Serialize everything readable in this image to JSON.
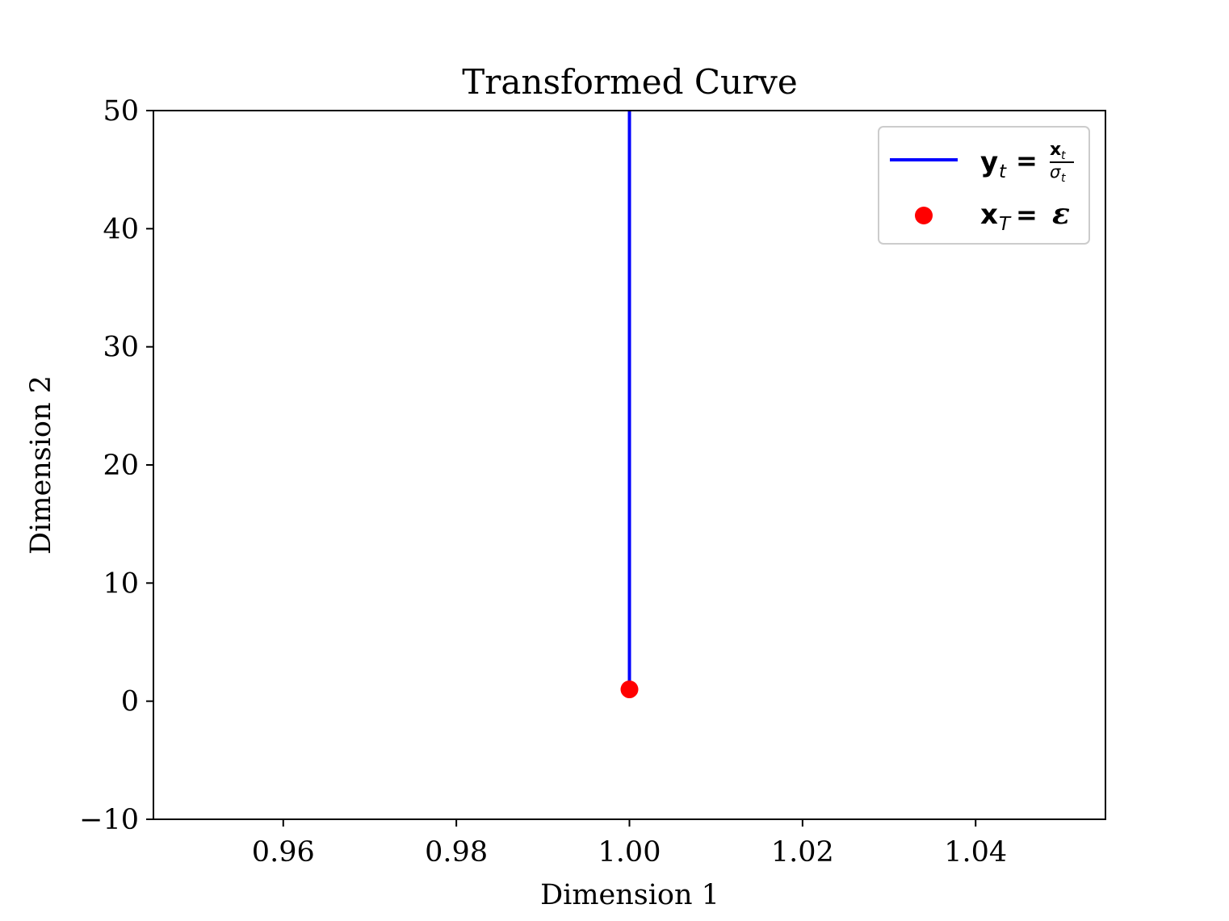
{
  "chart_data": {
    "type": "line",
    "title": "Transformed Curve",
    "xlabel": "Dimension 1",
    "ylabel": "Dimension 2",
    "xlim": [
      0.945,
      1.055
    ],
    "ylim": [
      -10,
      50
    ],
    "xticks": [
      0.96,
      0.98,
      1.0,
      1.02,
      1.04
    ],
    "xtick_labels": [
      "0.96",
      "0.98",
      "1.00",
      "1.02",
      "1.04"
    ],
    "yticks": [
      -10,
      0,
      10,
      20,
      30,
      40,
      50
    ],
    "ytick_labels": [
      "−10",
      "0",
      "10",
      "20",
      "30",
      "40",
      "50"
    ],
    "grid": false,
    "legend_position": "top-right",
    "series": [
      {
        "name": "y_t = x_t / σ_t",
        "kind": "line",
        "color": "#0000ff",
        "x": [
          1.0,
          1.0
        ],
        "y": [
          1.0,
          50
        ]
      },
      {
        "name": "x_T = ε",
        "kind": "scatter",
        "color": "#ff0000",
        "x": [
          1.0
        ],
        "y": [
          1.0
        ]
      }
    ]
  }
}
